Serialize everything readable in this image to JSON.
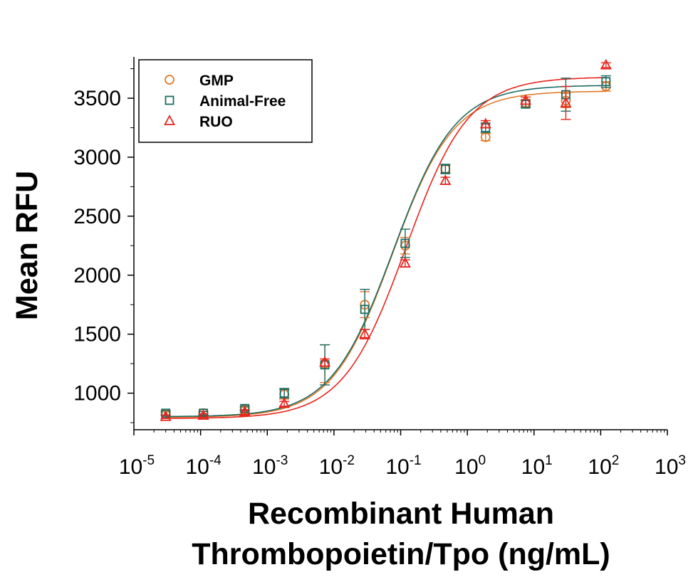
{
  "chart_data": {
    "type": "scatter",
    "title": "",
    "ylabel": "Mean RFU",
    "xlabel_lines": [
      "Recombinant Human",
      "Thrombopoietin/Tpo (ng/mL)"
    ],
    "x_scale": "log",
    "xlim": [
      1e-05,
      1000
    ],
    "ylim": [
      690,
      3850
    ],
    "x_ticks": [
      {
        "base": "10",
        "exp": "-5",
        "value": 1e-05
      },
      {
        "base": "10",
        "exp": "-4",
        "value": 0.0001
      },
      {
        "base": "10",
        "exp": "-3",
        "value": 0.001
      },
      {
        "base": "10",
        "exp": "-2",
        "value": 0.01
      },
      {
        "base": "10",
        "exp": "-1",
        "value": 0.1
      },
      {
        "base": "10",
        "exp": "0",
        "value": 1
      },
      {
        "base": "10",
        "exp": "1",
        "value": 10
      },
      {
        "base": "10",
        "exp": "2",
        "value": 100
      },
      {
        "base": "10",
        "exp": "3",
        "value": 1000
      }
    ],
    "y_ticks": [
      1000,
      1500,
      2000,
      2500,
      3000,
      3500
    ],
    "grid": false,
    "legend_position": "top-left",
    "series": [
      {
        "name": "GMP",
        "marker": "circle",
        "color": "#E07A2A",
        "x": [
          3e-05,
          0.00011,
          0.00046,
          0.0018,
          0.0073,
          0.029,
          0.117,
          0.469,
          1.88,
          7.5,
          30,
          120
        ],
        "y": [
          825,
          830,
          860,
          990,
          1250,
          1750,
          2250,
          2900,
          3170,
          3460,
          3480,
          3600
        ],
        "err": [
          15,
          15,
          20,
          40,
          160,
          110,
          70,
          30,
          30,
          30,
          60,
          40
        ],
        "fit": {
          "bottom": 795,
          "top": 3560,
          "ec50": 0.075,
          "hill": 0.95
        }
      },
      {
        "name": "Animal-Free",
        "marker": "square",
        "color": "#1C6B62",
        "x": [
          3e-05,
          0.00011,
          0.00046,
          0.0018,
          0.0073,
          0.029,
          0.117,
          0.469,
          1.88,
          7.5,
          30,
          120
        ],
        "y": [
          830,
          830,
          870,
          1000,
          1240,
          1710,
          2270,
          2900,
          3250,
          3450,
          3530,
          3640
        ],
        "err": [
          20,
          15,
          20,
          40,
          170,
          170,
          120,
          40,
          40,
          30,
          140,
          50
        ],
        "fit": {
          "bottom": 800,
          "top": 3610,
          "ec50": 0.077,
          "hill": 0.93
        }
      },
      {
        "name": "RUO",
        "marker": "triangle",
        "color": "#E8231C",
        "x": [
          3e-05,
          0.00011,
          0.00046,
          0.0018,
          0.0073,
          0.029,
          0.117,
          0.469,
          1.88,
          7.5,
          30,
          120
        ],
        "y": [
          800,
          810,
          840,
          910,
          1260,
          1500,
          2100,
          2800,
          3280,
          3480,
          3460,
          3780
        ],
        "err": [
          15,
          15,
          20,
          20,
          30,
          40,
          30,
          30,
          30,
          30,
          140,
          20
        ],
        "fit": {
          "bottom": 785,
          "top": 3680,
          "ec50": 0.12,
          "hill": 0.92
        }
      }
    ]
  }
}
